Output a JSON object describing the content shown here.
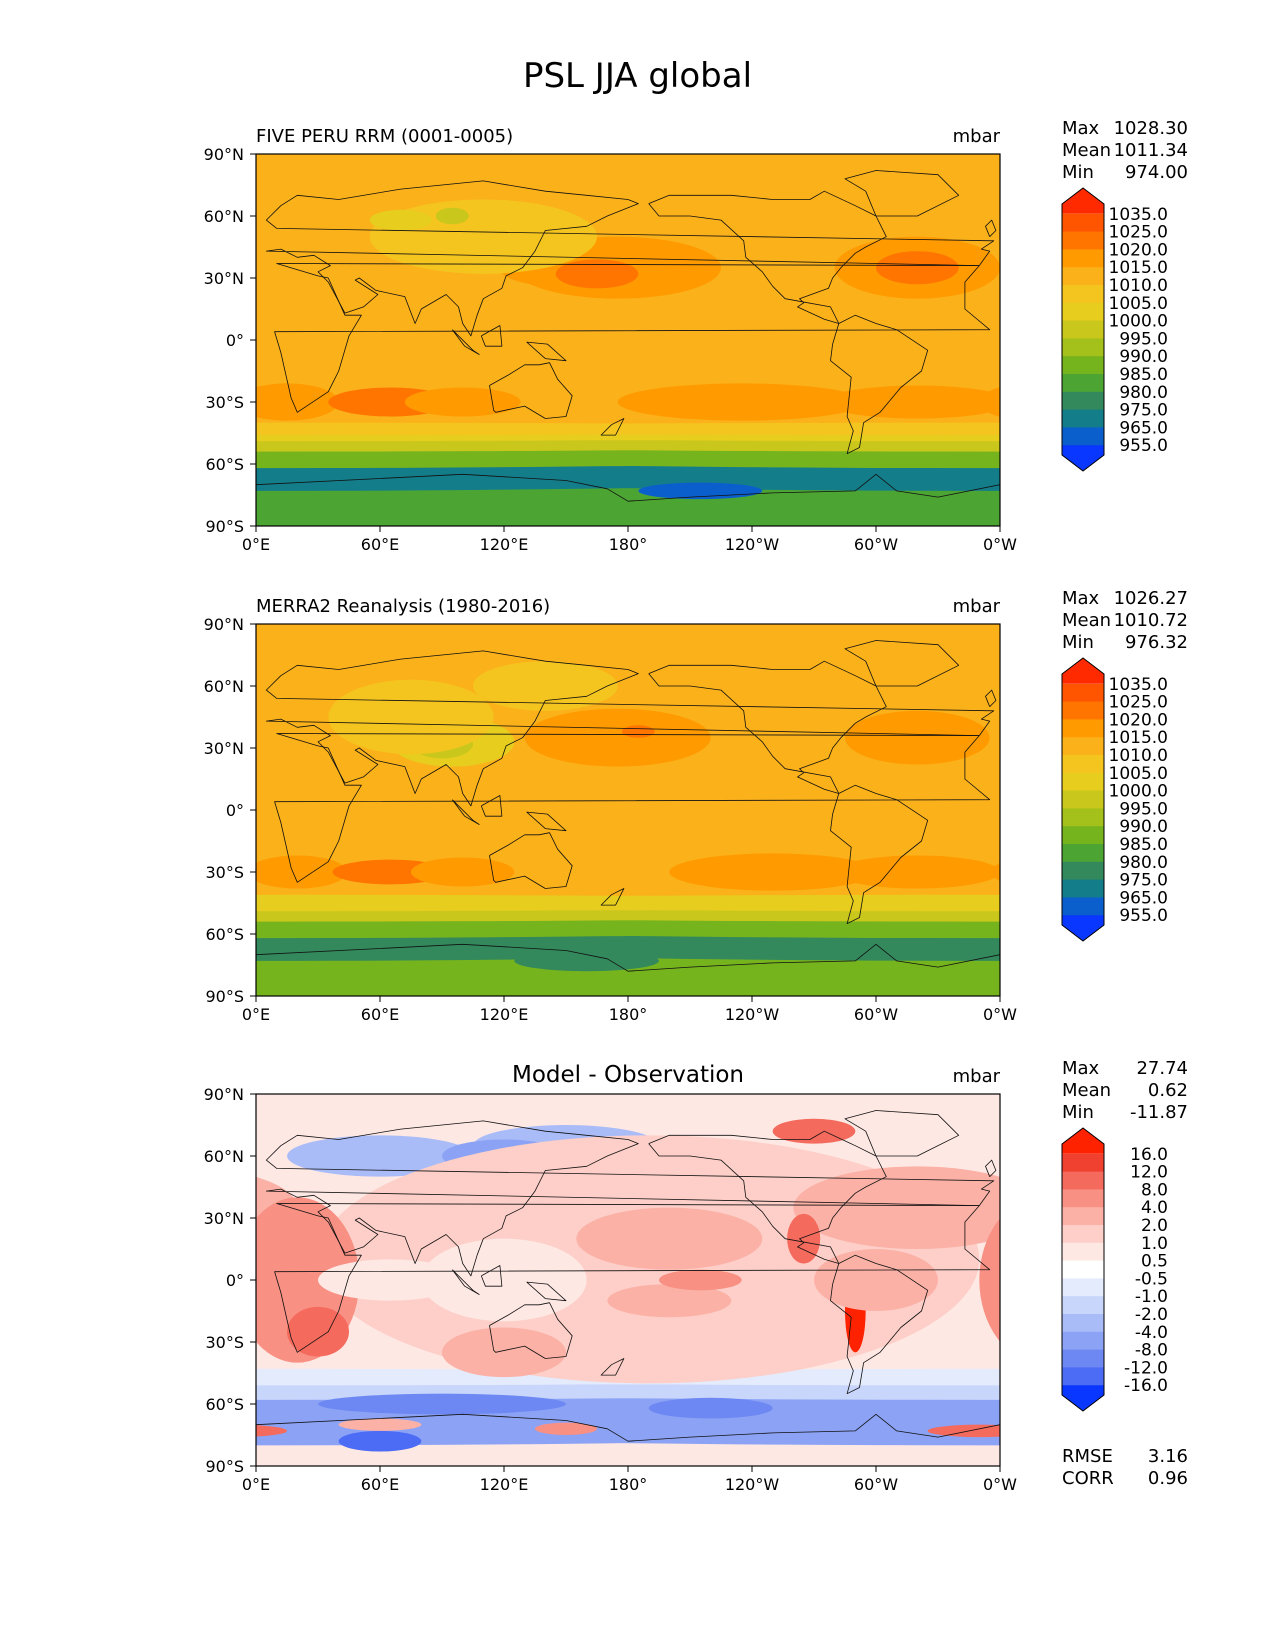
{
  "figure_title": "PSL JJA global",
  "chart_data": [
    {
      "type": "heatmap",
      "panel": "test",
      "title": "FIVE PERU RRM (0001-0005)",
      "units": "mbar",
      "stats": [
        {
          "label": "Max",
          "value": "1028.30"
        },
        {
          "label": "Mean",
          "value": "1011.34"
        },
        {
          "label": "Min",
          "value": "974.00"
        }
      ],
      "x_ticks": [
        "0°E",
        "60°E",
        "120°E",
        "180°",
        "120°W",
        "60°W",
        "0°W"
      ],
      "y_ticks": [
        "90°N",
        "60°N",
        "30°N",
        "0°",
        "30°S",
        "60°S",
        "90°S"
      ],
      "xlim": [
        0,
        360
      ],
      "ylim": [
        -90,
        90
      ],
      "colorbar_levels": [
        "1035.0",
        "1025.0",
        "1020.0",
        "1015.0",
        "1010.0",
        "1005.0",
        "1000.0",
        "995.0",
        "990.0",
        "985.0",
        "980.0",
        "975.0",
        "965.0",
        "955.0"
      ],
      "colorbar_colors": [
        "#ff2a00",
        "#ff5500",
        "#ff7500",
        "#ff9a00",
        "#fbb11a",
        "#f5c51f",
        "#e6cd1e",
        "#c9c71c",
        "#a4c01a",
        "#76b41e",
        "#4ca533",
        "#33895c",
        "#147d8a",
        "#0b5fcc",
        "#0a37ff"
      ]
    },
    {
      "type": "heatmap",
      "panel": "reference",
      "title": "MERRA2 Reanalysis (1980-2016)",
      "units": "mbar",
      "stats": [
        {
          "label": "Max",
          "value": "1026.27"
        },
        {
          "label": "Mean",
          "value": "1010.72"
        },
        {
          "label": "Min",
          "value": "976.32"
        }
      ],
      "x_ticks": [
        "0°E",
        "60°E",
        "120°E",
        "180°",
        "120°W",
        "60°W",
        "0°W"
      ],
      "y_ticks": [
        "90°N",
        "60°N",
        "30°N",
        "0°",
        "30°S",
        "60°S",
        "90°S"
      ],
      "xlim": [
        0,
        360
      ],
      "ylim": [
        -90,
        90
      ],
      "colorbar_levels": [
        "1035.0",
        "1025.0",
        "1020.0",
        "1015.0",
        "1010.0",
        "1005.0",
        "1000.0",
        "995.0",
        "990.0",
        "985.0",
        "980.0",
        "975.0",
        "965.0",
        "955.0"
      ],
      "colorbar_colors": [
        "#ff2a00",
        "#ff5500",
        "#ff7500",
        "#ff9a00",
        "#fbb11a",
        "#f5c51f",
        "#e6cd1e",
        "#c9c71c",
        "#a4c01a",
        "#76b41e",
        "#4ca533",
        "#33895c",
        "#147d8a",
        "#0b5fcc",
        "#0a37ff"
      ]
    },
    {
      "type": "heatmap",
      "panel": "difference",
      "title": "Model - Observation",
      "units": "mbar",
      "stats": [
        {
          "label": "Max",
          "value": "27.74"
        },
        {
          "label": "Mean",
          "value": "0.62"
        },
        {
          "label": "Min",
          "value": "-11.87"
        }
      ],
      "extra_stats": [
        {
          "label": "RMSE",
          "value": "3.16"
        },
        {
          "label": "CORR",
          "value": "0.96"
        }
      ],
      "x_ticks": [
        "0°E",
        "60°E",
        "120°E",
        "180°",
        "120°W",
        "60°W",
        "0°W"
      ],
      "y_ticks": [
        "90°N",
        "60°N",
        "30°N",
        "0°",
        "30°S",
        "60°S",
        "90°S"
      ],
      "xlim": [
        0,
        360
      ],
      "ylim": [
        -90,
        90
      ],
      "colorbar_levels": [
        "16.0",
        "12.0",
        "8.0",
        "4.0",
        "2.0",
        "1.0",
        "0.5",
        "-0.5",
        "-1.0",
        "-2.0",
        "-4.0",
        "-8.0",
        "-12.0",
        "-16.0"
      ],
      "colorbar_colors": [
        "#ff2200",
        "#ef4030",
        "#f46a5c",
        "#f89083",
        "#fbb1a6",
        "#fdcfc8",
        "#fee8e4",
        "#ffffff",
        "#e4ebfd",
        "#c9d6fb",
        "#a9bcf8",
        "#8ca3f5",
        "#6d88f2",
        "#4d6cf5",
        "#0a37ff"
      ]
    }
  ]
}
